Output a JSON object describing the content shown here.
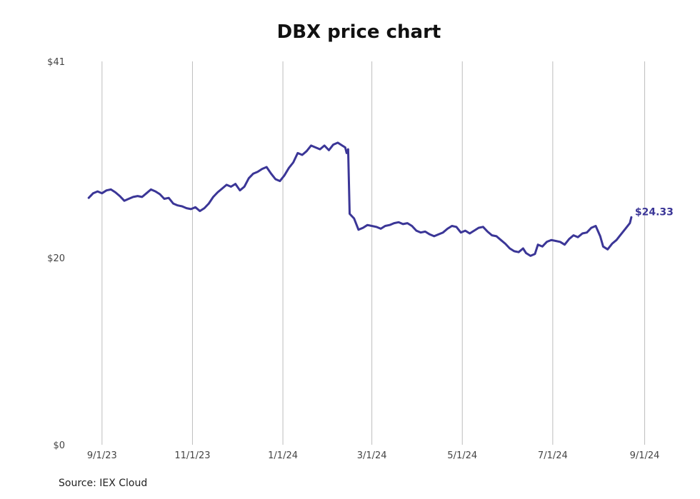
{
  "chart_data": {
    "type": "line",
    "title": "DBX price chart",
    "source": "Source: IEX Cloud",
    "line_color": "#3b3697",
    "grid_color": "#bdbdbd",
    "grid": "vertical",
    "y_ticks": [
      {
        "value": 0,
        "label": "$0"
      },
      {
        "value": 20,
        "label": "$20"
      },
      {
        "value": 41,
        "label": "$41"
      }
    ],
    "x_ticks": [
      {
        "date": "2023-09-01",
        "label": "9/1/23"
      },
      {
        "date": "2023-11-01",
        "label": "11/1/23"
      },
      {
        "date": "2024-01-01",
        "label": "1/1/24"
      },
      {
        "date": "2024-03-01",
        "label": "3/1/24"
      },
      {
        "date": "2024-05-01",
        "label": "5/1/24"
      },
      {
        "date": "2024-07-01",
        "label": "7/1/24"
      },
      {
        "date": "2024-09-01",
        "label": "9/1/24"
      }
    ],
    "ylim": [
      0,
      41
    ],
    "xlim": [
      "2023-08-21",
      "2024-09-07"
    ],
    "end_label": "$24.33",
    "series": [
      {
        "points": [
          [
            "2023-08-23",
            26.4
          ],
          [
            "2023-08-26",
            26.9
          ],
          [
            "2023-08-29",
            27.1
          ],
          [
            "2023-09-01",
            26.9
          ],
          [
            "2023-09-04",
            27.2
          ],
          [
            "2023-09-07",
            27.3
          ],
          [
            "2023-09-10",
            27.0
          ],
          [
            "2023-09-13",
            26.6
          ],
          [
            "2023-09-16",
            26.1
          ],
          [
            "2023-09-19",
            26.3
          ],
          [
            "2023-09-22",
            26.5
          ],
          [
            "2023-09-25",
            26.6
          ],
          [
            "2023-09-28",
            26.5
          ],
          [
            "2023-10-01",
            26.9
          ],
          [
            "2023-10-04",
            27.3
          ],
          [
            "2023-10-07",
            27.1
          ],
          [
            "2023-10-10",
            26.8
          ],
          [
            "2023-10-13",
            26.3
          ],
          [
            "2023-10-16",
            26.4
          ],
          [
            "2023-10-19",
            25.8
          ],
          [
            "2023-10-22",
            25.6
          ],
          [
            "2023-10-25",
            25.5
          ],
          [
            "2023-10-28",
            25.3
          ],
          [
            "2023-10-31",
            25.2
          ],
          [
            "2023-11-03",
            25.4
          ],
          [
            "2023-11-06",
            25.0
          ],
          [
            "2023-11-09",
            25.3
          ],
          [
            "2023-11-12",
            25.8
          ],
          [
            "2023-11-15",
            26.5
          ],
          [
            "2023-11-18",
            27.0
          ],
          [
            "2023-11-21",
            27.4
          ],
          [
            "2023-11-24",
            27.8
          ],
          [
            "2023-11-27",
            27.6
          ],
          [
            "2023-11-30",
            27.9
          ],
          [
            "2023-12-03",
            27.2
          ],
          [
            "2023-12-06",
            27.6
          ],
          [
            "2023-12-09",
            28.5
          ],
          [
            "2023-12-12",
            29.0
          ],
          [
            "2023-12-15",
            29.2
          ],
          [
            "2023-12-18",
            29.5
          ],
          [
            "2023-12-21",
            29.7
          ],
          [
            "2023-12-24",
            29.0
          ],
          [
            "2023-12-27",
            28.4
          ],
          [
            "2023-12-30",
            28.2
          ],
          [
            "2024-01-02",
            28.8
          ],
          [
            "2024-01-05",
            29.6
          ],
          [
            "2024-01-08",
            30.2
          ],
          [
            "2024-01-11",
            31.2
          ],
          [
            "2024-01-14",
            31.0
          ],
          [
            "2024-01-17",
            31.4
          ],
          [
            "2024-01-20",
            32.0
          ],
          [
            "2024-01-23",
            31.8
          ],
          [
            "2024-01-26",
            31.6
          ],
          [
            "2024-01-29",
            32.0
          ],
          [
            "2024-02-01",
            31.5
          ],
          [
            "2024-02-04",
            32.1
          ],
          [
            "2024-02-07",
            32.3
          ],
          [
            "2024-02-10",
            32.0
          ],
          [
            "2024-02-12",
            31.8
          ],
          [
            "2024-02-13",
            31.2
          ],
          [
            "2024-02-14",
            31.6
          ],
          [
            "2024-02-15",
            24.7
          ],
          [
            "2024-02-18",
            24.2
          ],
          [
            "2024-02-21",
            23.0
          ],
          [
            "2024-02-24",
            23.2
          ],
          [
            "2024-02-27",
            23.5
          ],
          [
            "2024-03-01",
            23.4
          ],
          [
            "2024-03-04",
            23.3
          ],
          [
            "2024-03-07",
            23.1
          ],
          [
            "2024-03-10",
            23.4
          ],
          [
            "2024-03-13",
            23.5
          ],
          [
            "2024-03-16",
            23.7
          ],
          [
            "2024-03-19",
            23.8
          ],
          [
            "2024-03-22",
            23.6
          ],
          [
            "2024-03-25",
            23.7
          ],
          [
            "2024-03-28",
            23.4
          ],
          [
            "2024-03-31",
            22.9
          ],
          [
            "2024-04-03",
            22.7
          ],
          [
            "2024-04-06",
            22.8
          ],
          [
            "2024-04-09",
            22.5
          ],
          [
            "2024-04-12",
            22.3
          ],
          [
            "2024-04-15",
            22.5
          ],
          [
            "2024-04-18",
            22.7
          ],
          [
            "2024-04-21",
            23.1
          ],
          [
            "2024-04-24",
            23.4
          ],
          [
            "2024-04-27",
            23.3
          ],
          [
            "2024-04-30",
            22.7
          ],
          [
            "2024-05-03",
            22.9
          ],
          [
            "2024-05-06",
            22.6
          ],
          [
            "2024-05-09",
            22.9
          ],
          [
            "2024-05-12",
            23.2
          ],
          [
            "2024-05-15",
            23.3
          ],
          [
            "2024-05-18",
            22.8
          ],
          [
            "2024-05-21",
            22.4
          ],
          [
            "2024-05-24",
            22.3
          ],
          [
            "2024-05-27",
            21.9
          ],
          [
            "2024-05-30",
            21.5
          ],
          [
            "2024-06-02",
            21.0
          ],
          [
            "2024-06-05",
            20.7
          ],
          [
            "2024-06-08",
            20.6
          ],
          [
            "2024-06-11",
            21.0
          ],
          [
            "2024-06-13",
            20.5
          ],
          [
            "2024-06-16",
            20.2
          ],
          [
            "2024-06-19",
            20.4
          ],
          [
            "2024-06-21",
            21.4
          ],
          [
            "2024-06-24",
            21.2
          ],
          [
            "2024-06-27",
            21.7
          ],
          [
            "2024-06-30",
            21.9
          ],
          [
            "2024-07-03",
            21.8
          ],
          [
            "2024-07-06",
            21.7
          ],
          [
            "2024-07-09",
            21.4
          ],
          [
            "2024-07-12",
            22.0
          ],
          [
            "2024-07-15",
            22.4
          ],
          [
            "2024-07-18",
            22.2
          ],
          [
            "2024-07-21",
            22.6
          ],
          [
            "2024-07-24",
            22.7
          ],
          [
            "2024-07-27",
            23.2
          ],
          [
            "2024-07-30",
            23.4
          ],
          [
            "2024-08-02",
            22.3
          ],
          [
            "2024-08-04",
            21.2
          ],
          [
            "2024-08-07",
            20.9
          ],
          [
            "2024-08-10",
            21.5
          ],
          [
            "2024-08-13",
            21.9
          ],
          [
            "2024-08-16",
            22.5
          ],
          [
            "2024-08-19",
            23.1
          ],
          [
            "2024-08-22",
            23.7
          ],
          [
            "2024-08-23",
            24.33
          ]
        ]
      }
    ]
  }
}
